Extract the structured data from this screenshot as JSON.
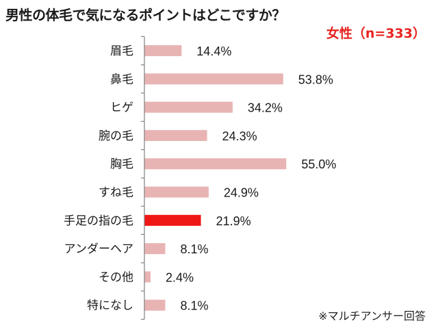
{
  "chart_data": {
    "type": "bar",
    "orientation": "horizontal",
    "title": "男性の体毛で気になるポイントはどこですか？",
    "subtitle": "女性（n=333）",
    "note": "※マルチアンサー回答",
    "categories": [
      "眉毛",
      "鼻毛",
      "ヒゲ",
      "腕の毛",
      "胸毛",
      "すね毛",
      "手足の指の毛",
      "アンダーヘア",
      "その他",
      "特になし"
    ],
    "values": [
      14.4,
      53.8,
      34.2,
      24.3,
      55.0,
      24.9,
      21.9,
      8.1,
      2.4,
      8.1
    ],
    "value_labels": [
      "14.4%",
      "53.8%",
      "34.2%",
      "24.3%",
      "55.0%",
      "24.9%",
      "21.9%",
      "8.1%",
      "2.4%",
      "8.1%"
    ],
    "highlight_category": "手足の指の毛",
    "xlim": [
      0,
      100
    ],
    "grid": false,
    "legend": "none",
    "colors": {
      "bar": "#e8b4b3",
      "highlight": "#f01717",
      "axis": "#7f7f7f",
      "subtitle": "#e8231e"
    }
  }
}
